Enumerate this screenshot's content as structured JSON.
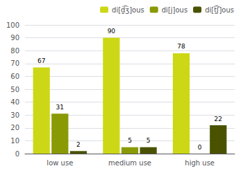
{
  "chart_data": {
    "type": "bar",
    "categories": [
      "low use",
      "medium use",
      "high use"
    ],
    "series": [
      {
        "name": "di[ḏ͡ʒ]ous",
        "values": [
          67,
          90,
          78
        ],
        "color": "#ccd815"
      },
      {
        "name": "di[j]ous",
        "values": [
          31,
          5,
          0
        ],
        "color": "#8a9a05"
      },
      {
        "name": "di[ṯ͡ʃ]ous",
        "values": [
          2,
          5,
          22
        ],
        "color": "#4a5200"
      }
    ],
    "ylim": [
      0,
      100
    ],
    "yticks": [
      0,
      10,
      20,
      30,
      40,
      50,
      60,
      70,
      80,
      90,
      100
    ],
    "grid": true,
    "legend": "upper right",
    "data_labels": true
  }
}
